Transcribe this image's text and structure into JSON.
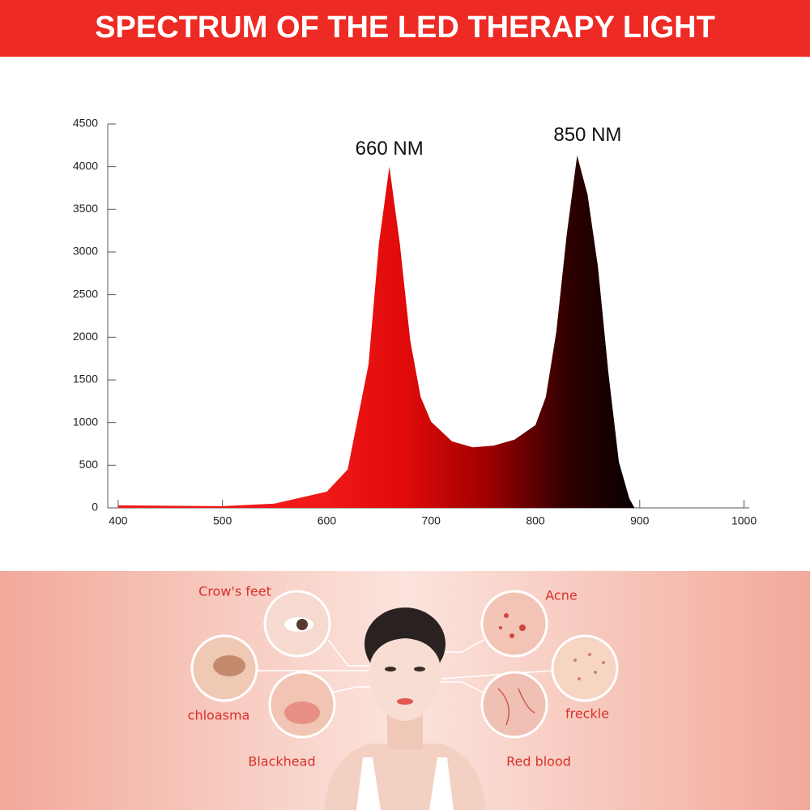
{
  "header": {
    "title": "SPECTRUM OF THE LED THERAPY LIGHT"
  },
  "chart_data": {
    "type": "area",
    "x": [
      400,
      500,
      550,
      600,
      620,
      640,
      650,
      660,
      670,
      680,
      690,
      700,
      720,
      740,
      760,
      780,
      800,
      810,
      820,
      830,
      840,
      850,
      860,
      870,
      880,
      890,
      895
    ],
    "series": [
      {
        "values": [
          30,
          20,
          50,
          190,
          450,
          1680,
          3100,
          4000,
          3100,
          1960,
          1300,
          1010,
          780,
          710,
          730,
          800,
          970,
          1300,
          2060,
          3200,
          4130,
          3670,
          2820,
          1580,
          540,
          110,
          0
        ],
        "gradient": [
          "#f01818",
          "#e00a0a",
          "#a00000",
          "#300000",
          "#000000"
        ]
      }
    ],
    "annotations": [
      {
        "text": "660 NM",
        "x": 660,
        "y": 4200
      },
      {
        "text": "850 NM",
        "x": 850,
        "y": 4360
      }
    ],
    "xlim": [
      390,
      1005
    ],
    "xticks": [
      400,
      500,
      600,
      700,
      800,
      900,
      1000
    ],
    "ylim": [
      0,
      4500
    ],
    "yticks": [
      0,
      500,
      1000,
      1500,
      2000,
      2500,
      3000,
      3500,
      4000,
      4500
    ]
  },
  "skin_issues": [
    "Crow's feet",
    "Acne",
    "chloasma",
    "freckle",
    "Blackhead",
    "Red blood"
  ]
}
